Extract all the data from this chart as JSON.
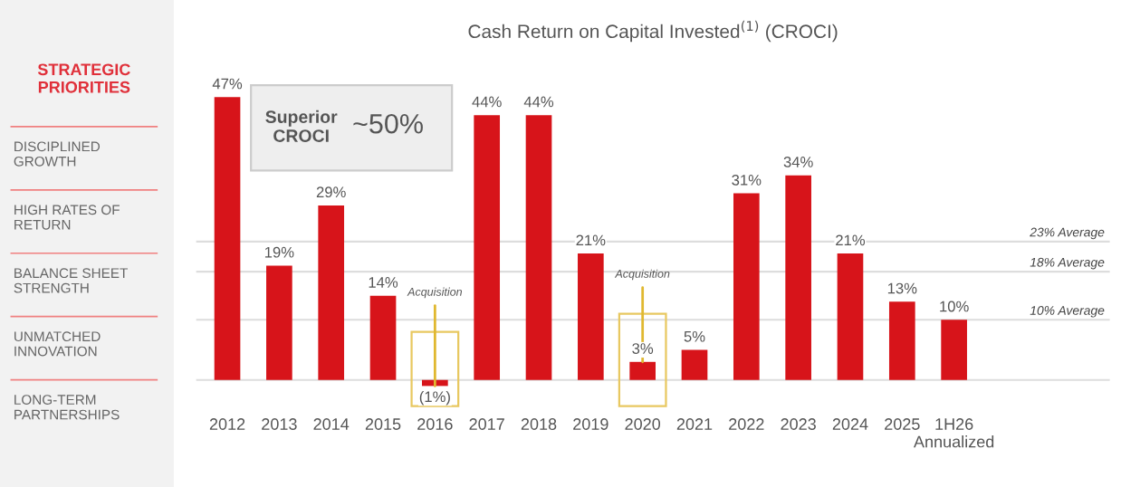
{
  "chart_data": {
    "type": "bar",
    "title": "Cash Return on Capital Invested$^{(1)}$ (CROCI)",
    "categories": [
      "2012",
      "2013",
      "2014",
      "2015",
      "2016",
      "2017",
      "2018",
      "2019",
      "2020",
      "2021",
      "2022",
      "2023",
      "2024",
      "2025",
      "1H26\nAnnualized"
    ],
    "values": [
      47,
      19,
      29,
      14,
      -1,
      44,
      44,
      21,
      3,
      5,
      31,
      34,
      21,
      13,
      10
    ],
    "value_labels": [
      "47%",
      "19%",
      "29%",
      "14%",
      "(1%)",
      "44%",
      "44%",
      "21%",
      "3%",
      "5%",
      "31%",
      "34%",
      "21%",
      "13%",
      "10%"
    ],
    "color": "#d7141a",
    "ref_lines": [
      {
        "axis": "y",
        "value": 23,
        "label": "23% Average",
        "color": "#dddddd"
      },
      {
        "axis": "y",
        "value": 18,
        "label": "18% Average",
        "color": "#dddddd"
      },
      {
        "axis": "y",
        "value": 10,
        "label": "10% Average",
        "color": "#dddddd"
      }
    ],
    "annotations": [
      {
        "text": "Acquisition",
        "x": "2016",
        "y": -1
      },
      {
        "text": "Acquisition",
        "x": "2020",
        "y": 3
      },
      "Superior CROCI",
      "~50%",
      "STRATEGIC PRIORITIES",
      "DISCIPLINED GROWTH",
      "HIGH RATES OF RETURN",
      "BALANCE SHEET STRENGTH",
      "UNMATCHED INNOVATION",
      "LONG-TERM PARTNERSHIPS"
    ],
    "grid": false
  }
}
